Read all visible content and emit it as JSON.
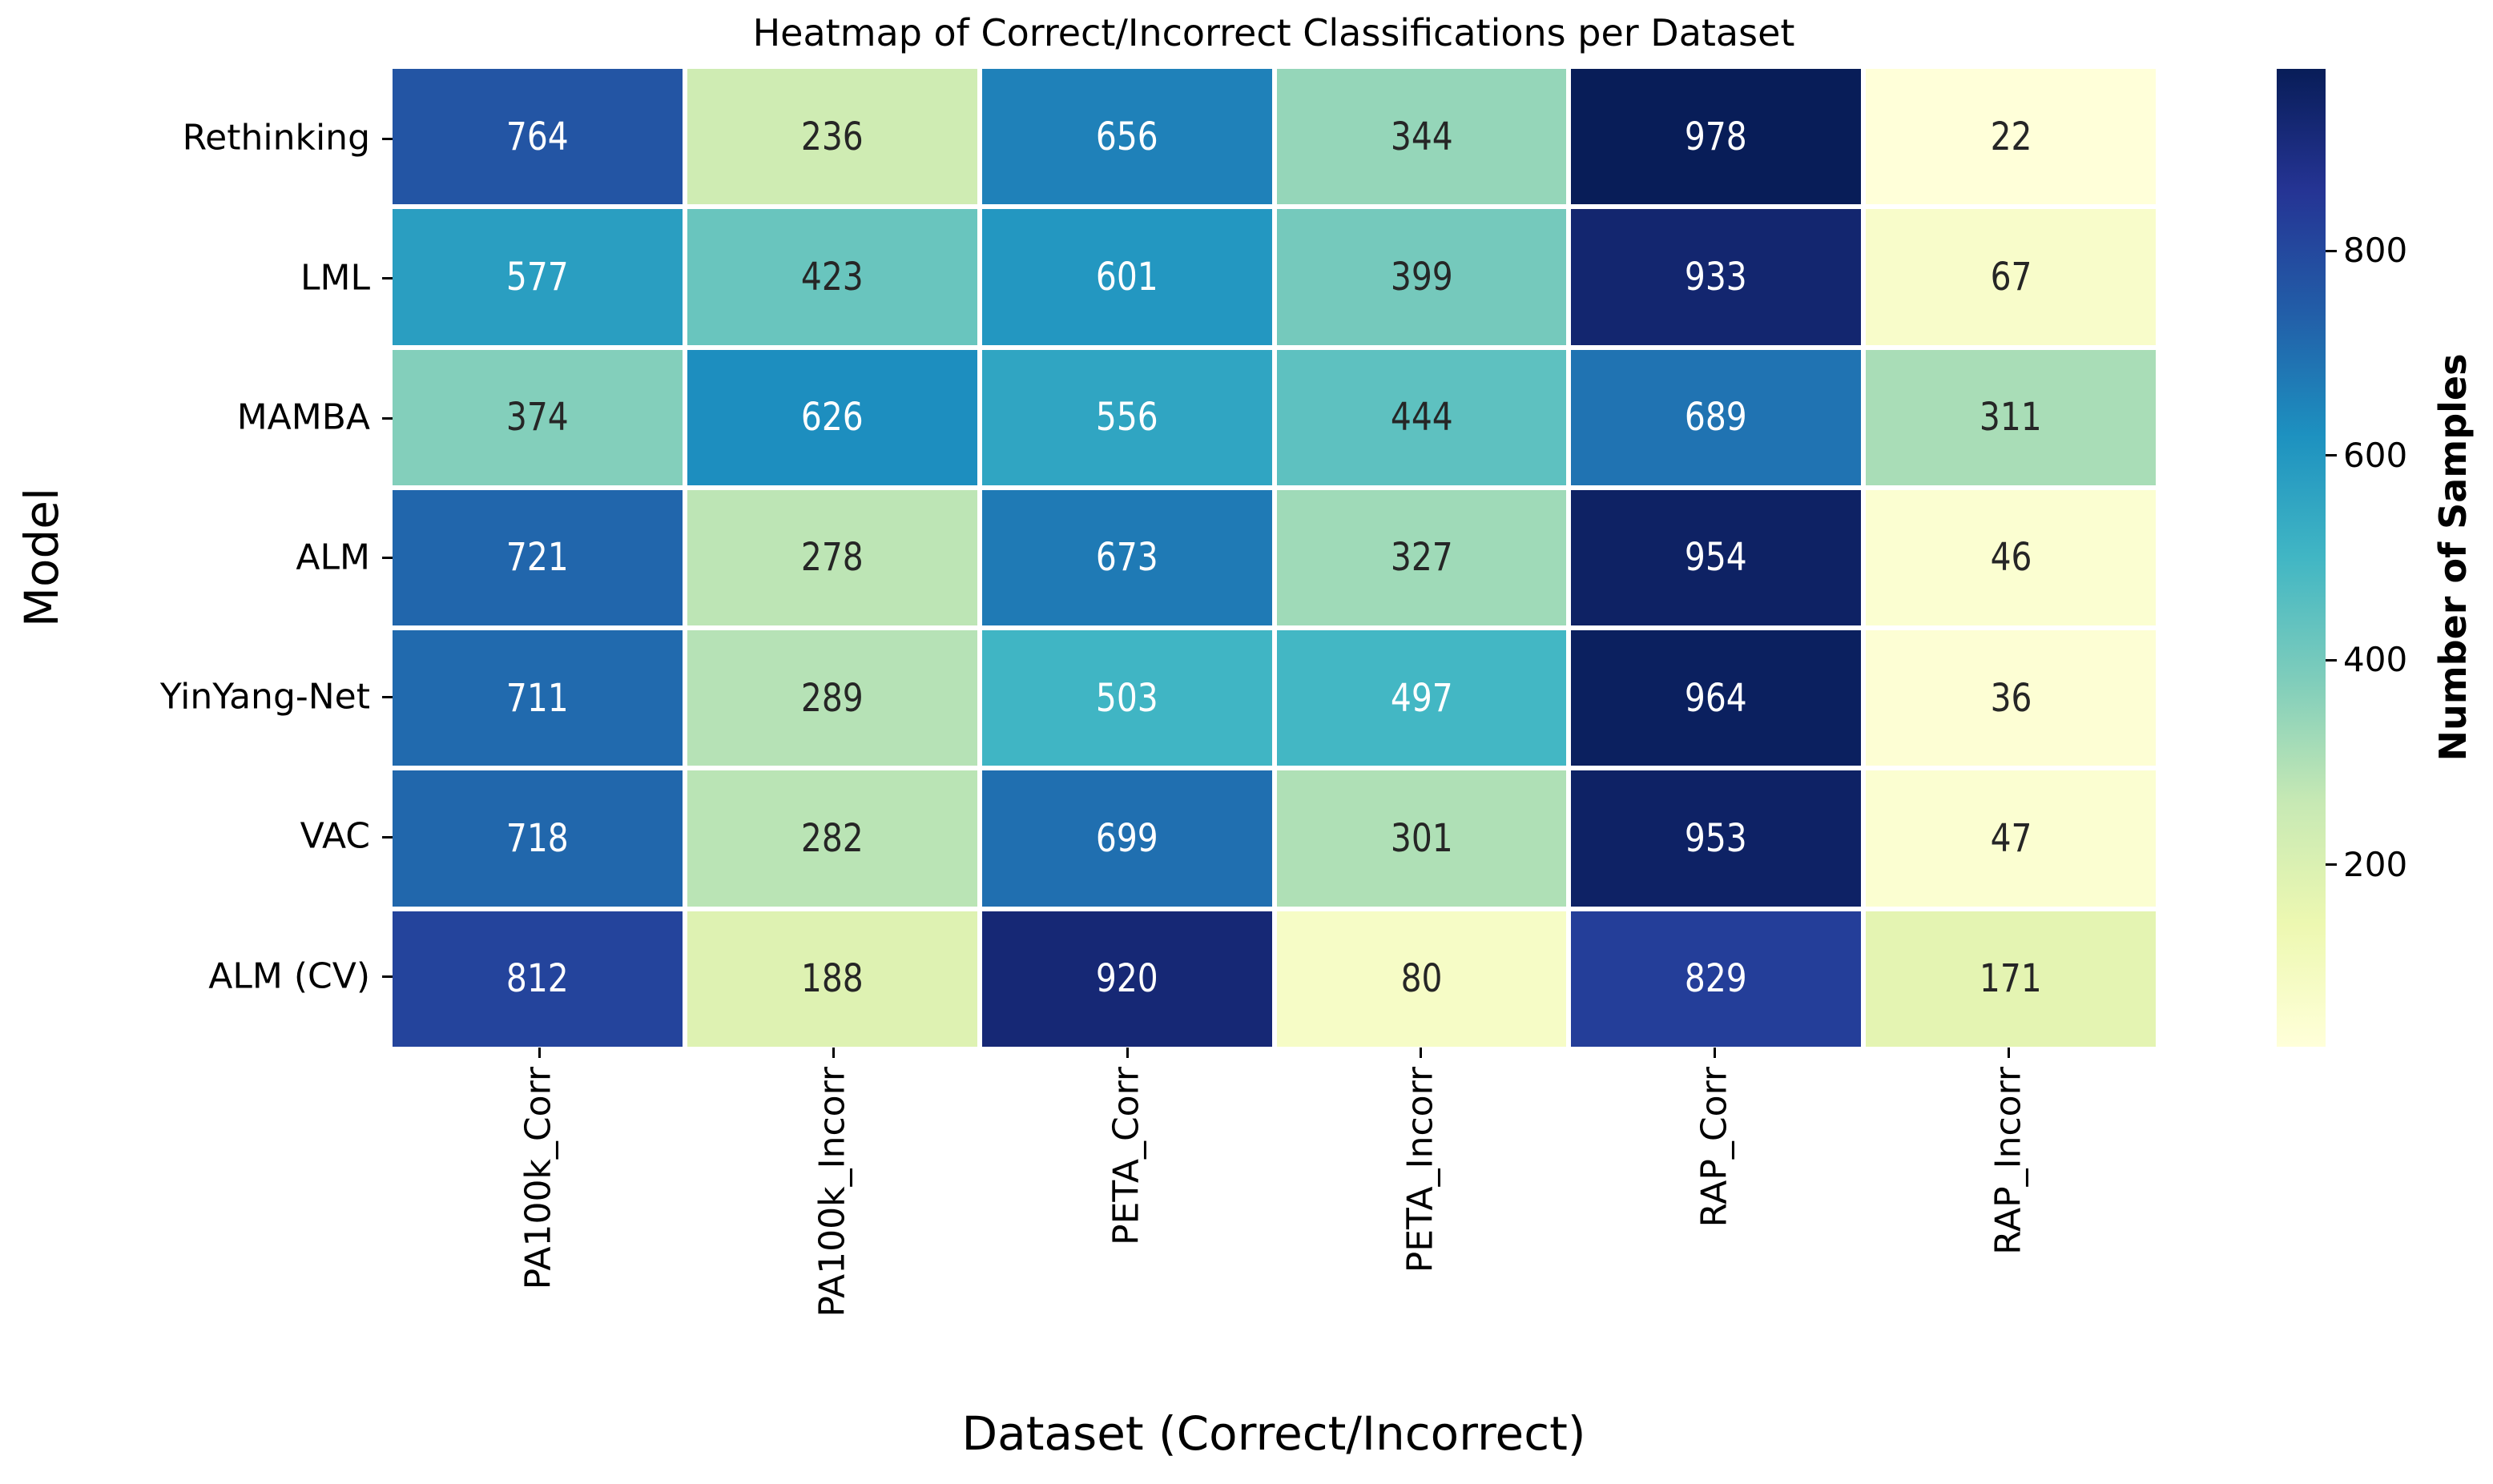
{
  "chart_data": {
    "type": "heatmap",
    "title": "Heatmap of Correct/Incorrect Classifications per Dataset",
    "xlabel": "Dataset (Correct/Incorrect)",
    "ylabel": "Model",
    "columns": [
      "PA100k_Corr",
      "PA100k_Incorr",
      "PETA_Corr",
      "PETA_Incorr",
      "RAP_Corr",
      "RAP_Incorr"
    ],
    "rows": [
      "Rethinking",
      "LML",
      "MAMBA",
      "ALM",
      "YinYang-Net",
      "VAC",
      "ALM (CV)"
    ],
    "values": [
      [
        764,
        236,
        656,
        344,
        978,
        22
      ],
      [
        577,
        423,
        601,
        399,
        933,
        67
      ],
      [
        374,
        626,
        556,
        444,
        689,
        311
      ],
      [
        721,
        278,
        673,
        327,
        954,
        46
      ],
      [
        711,
        289,
        503,
        497,
        964,
        36
      ],
      [
        718,
        282,
        699,
        301,
        953,
        47
      ],
      [
        812,
        188,
        920,
        80,
        829,
        171
      ]
    ],
    "annotated": true,
    "vmin": 22,
    "vmax": 978,
    "colormap": "YlGnBu",
    "colormap_anchors": [
      "#ffffd9",
      "#edf8b1",
      "#c7e9b4",
      "#7fcdbb",
      "#41b6c4",
      "#1d91c0",
      "#225ea8",
      "#253494",
      "#081d58"
    ],
    "grid": false,
    "legend_position": "right",
    "colorbar": {
      "label": "Number of Samples",
      "ticks": [
        200,
        400,
        600,
        800
      ]
    },
    "annotation_text_colors": {
      "light": "#ffffff",
      "dark": "#262626"
    }
  }
}
